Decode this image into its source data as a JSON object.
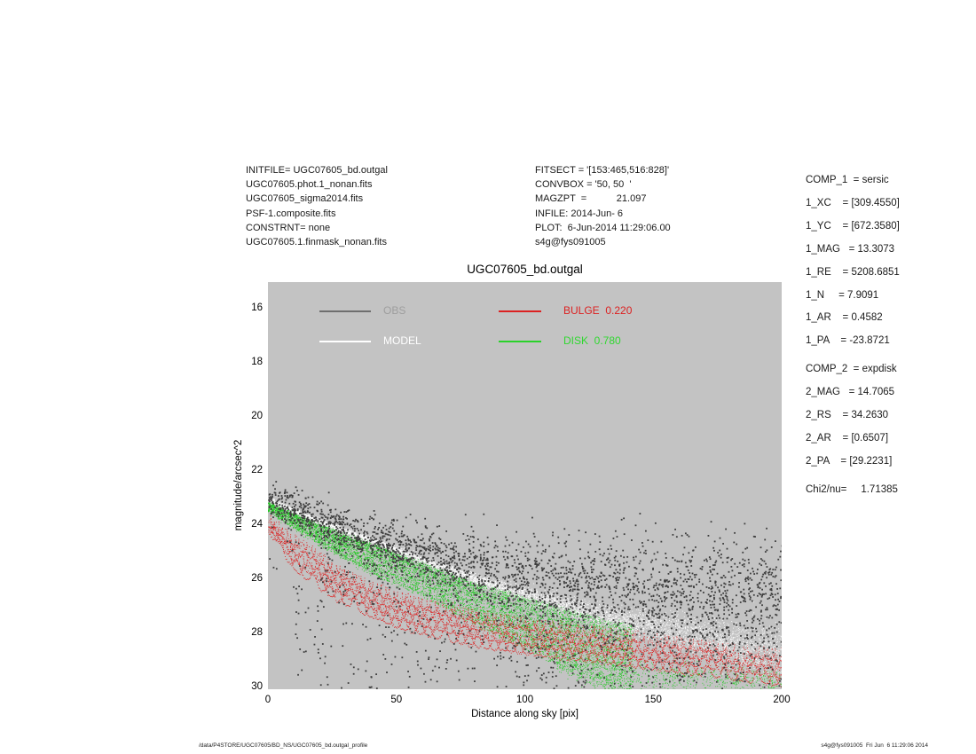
{
  "page": {
    "header_left": {
      "lines": [
        "INITFILE= UGC07605_bd.outgal",
        "UGC07605.phot.1_nonan.fits",
        "UGC07605_sigma2014.fits",
        "PSF-1.composite.fits",
        "CONSTRNT= none",
        "UGC07605.1.finmask_nonan.fits"
      ]
    },
    "header_middle": {
      "lines": [
        "FITSECT = '[153:465,516:828]'",
        "CONVBOX = '50, 50  '",
        "MAGZPT  =           21.097",
        "INFILE: 2014-Jun- 6",
        "PLOT:  6-Jun-2014 11:29:06.00",
        "s4g@fys091005"
      ]
    },
    "fit_panel": {
      "groups": [
        [
          "COMP_1  = sersic",
          "1_XC    = [309.4550]",
          "1_YC    = [672.3580]",
          "1_MAG   = 13.3073",
          "1_RE    = 5208.6851",
          "1_N     = 7.9091",
          "1_AR    = 0.4582",
          "1_PA    = -23.8721"
        ],
        [
          "COMP_2  = expdisk",
          "2_MAG   = 14.7065",
          "2_RS    = 34.2630",
          "2_AR    = [0.6507]",
          "2_PA    = [29.2231]"
        ],
        [
          "Chi2/nu=     1.71385"
        ]
      ]
    },
    "footer_left": "/data/P4STORE/UGC07605/BD_NS/UGC07605_bd.outgal_profile",
    "footer_right": "s4g@fys091005  Fri Jun  6 11:29:06 2014"
  },
  "chart_data": {
    "type": "scatter",
    "title": "UGC07605_bd.outgal",
    "xlabel": "Distance along sky [pix]",
    "ylabel": "magnitude/arcsec^2",
    "xlim": [
      0,
      200
    ],
    "ylim": [
      15.0,
      30.05
    ],
    "y_axis_inverted": true,
    "x_ticks": [
      "0",
      "50",
      "100",
      "150",
      "200"
    ],
    "x_tick_values": [
      0,
      50,
      100,
      150,
      200
    ],
    "y_ticks": [
      "16",
      "18",
      "20",
      "22",
      "24",
      "26",
      "28",
      "30"
    ],
    "y_tick_values": [
      16,
      18,
      20,
      22,
      24,
      26,
      28,
      30
    ],
    "grid": false,
    "plot_background": "#c3c3c3",
    "legend_position": "top-inside",
    "legend": [
      {
        "label": "OBS",
        "text_color": "#9e9e9e",
        "line_color": "#6f6f6f",
        "col": 0,
        "row": 0
      },
      {
        "label": "MODEL",
        "text_color": "#ffffff",
        "line_color": "#ffffff",
        "col": 0,
        "row": 1
      },
      {
        "label": "BULGE  0.220",
        "text_color": "#dc2222",
        "line_color": "#dc2222",
        "col": 1,
        "row": 0
      },
      {
        "label": "DISK  0.780",
        "text_color": "#30d830",
        "line_color": "#2ad22a",
        "col": 1,
        "row": 1
      }
    ],
    "series": [
      {
        "name": "DISK",
        "style": "wedge",
        "color": "#21c921",
        "dot_size": 0.9,
        "n": 7500,
        "x_range": [
          0,
          142
        ],
        "top_bias": 1.2,
        "top_curve": [
          [
            0,
            23.12
          ],
          [
            15,
            23.77
          ],
          [
            30,
            24.32
          ],
          [
            45,
            24.82
          ],
          [
            60,
            25.37
          ],
          [
            80,
            26.07
          ],
          [
            100,
            26.62
          ],
          [
            120,
            27.17
          ],
          [
            142,
            27.72
          ]
        ],
        "bottom_curve": [
          [
            0,
            23.45
          ],
          [
            20,
            24.7
          ],
          [
            40,
            25.75
          ],
          [
            60,
            26.6
          ],
          [
            80,
            27.65
          ],
          [
            100,
            28.55
          ],
          [
            115,
            29.3
          ],
          [
            130,
            30.1
          ],
          [
            142,
            30.5
          ]
        ],
        "tail": {
          "n": 850,
          "x_range": [
            112,
            200
          ],
          "sigma": 0.3,
          "curve": [
            [
              112,
              29.1
            ],
            [
              140,
              29.45
            ],
            [
              170,
              29.7
            ],
            [
              200,
              29.88
            ]
          ]
        }
      },
      {
        "name": "BULGE",
        "style": "scallop",
        "color": "#dc2020",
        "dot_size": 0.9,
        "center_curve": [
          [
            0,
            23.7
          ],
          [
            8,
            24.6
          ],
          [
            16,
            25.2
          ],
          [
            25,
            25.8
          ],
          [
            35,
            26.3
          ],
          [
            50,
            26.9
          ],
          [
            70,
            27.4
          ],
          [
            90,
            27.75
          ],
          [
            110,
            28.0
          ],
          [
            130,
            28.2
          ],
          [
            150,
            28.45
          ],
          [
            175,
            28.75
          ],
          [
            200,
            29.05
          ]
        ],
        "row_offsets": [
          -0.45,
          -0.15,
          0.15,
          0.45
        ],
        "arc_spacing": 3.2,
        "arc_halfwidth": 2.3,
        "arc_depth": 0.42,
        "points_per_arc": 22,
        "width_ramp_x": 15,
        "filler_n": 800,
        "filler_halfwidth": 0.5
      },
      {
        "name": "MODEL",
        "style": "band",
        "color": "#ffffff",
        "dot_size": 0.9,
        "n": 5600,
        "sigma_base": 0.05,
        "sigma_gain": 0.5,
        "sigma_pow": 2.5,
        "curve": [
          [
            0,
            23.0
          ],
          [
            15,
            23.65
          ],
          [
            30,
            24.2
          ],
          [
            45,
            24.7
          ],
          [
            60,
            25.25
          ],
          [
            80,
            25.95
          ],
          [
            100,
            26.5
          ],
          [
            120,
            27.05
          ],
          [
            140,
            27.55
          ],
          [
            160,
            27.95
          ],
          [
            180,
            28.35
          ],
          [
            200,
            28.75
          ]
        ]
      },
      {
        "name": "OBS",
        "style": "cloud",
        "color": "#3e3e3e",
        "dot_size": 1.8,
        "n": 2700,
        "mean_curve": [
          [
            0,
            23.0
          ],
          [
            25,
            24.05
          ],
          [
            50,
            24.9
          ],
          [
            75,
            25.5
          ],
          [
            100,
            25.9
          ],
          [
            125,
            26.2
          ],
          [
            150,
            26.4
          ],
          [
            175,
            26.55
          ],
          [
            200,
            26.65
          ]
        ],
        "sigma_curve": [
          [
            0,
            0.3
          ],
          [
            50,
            0.5
          ],
          [
            100,
            0.75
          ],
          [
            150,
            0.95
          ],
          [
            200,
            1.05
          ]
        ],
        "outlier_frac": 0.06,
        "outlier_extra": 2.5,
        "deep": {
          "n": 540,
          "x_range": [
            8,
            200
          ],
          "offset": 0.8,
          "floor": 30.0
        }
      }
    ]
  }
}
